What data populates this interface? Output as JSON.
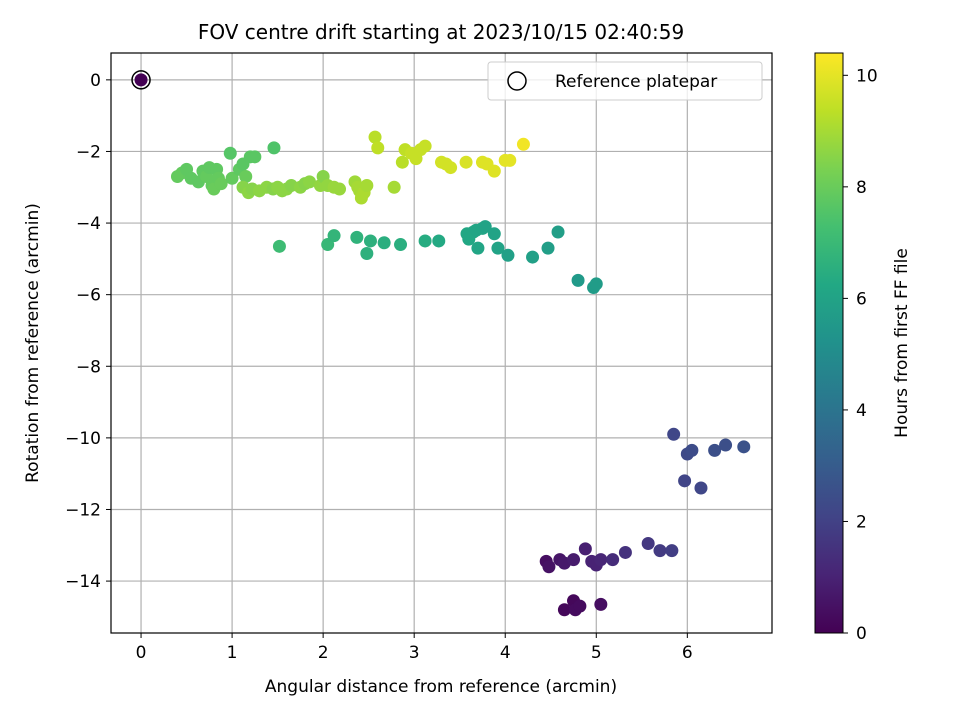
{
  "chart_data": {
    "type": "scatter",
    "title": "FOV centre drift starting at 2023/10/15 02:40:59",
    "xlabel": "Angular distance from reference (arcmin)",
    "ylabel": "Rotation from reference (arcmin)",
    "xlim": [
      -0.33,
      6.93
    ],
    "ylim": [
      -15.45,
      0.75
    ],
    "xticks": [
      "0",
      "1",
      "2",
      "3",
      "4",
      "5",
      "6"
    ],
    "xtick_values": [
      0,
      1,
      2,
      3,
      4,
      5,
      6
    ],
    "yticks": [
      "0",
      "−2",
      "−4",
      "−6",
      "−8",
      "−10",
      "−12",
      "−14"
    ],
    "ytick_values": [
      0,
      -2,
      -4,
      -6,
      -8,
      -10,
      -12,
      -14
    ],
    "grid": true,
    "legend": {
      "placement": "top-right",
      "entries": [
        "Reference platepar"
      ]
    },
    "reference_point": {
      "x": 0,
      "y": 0
    },
    "colorbar": {
      "label": "Hours from first FF file",
      "colormap": "viridis",
      "range": [
        0,
        10.4
      ],
      "ticks": [
        "0",
        "2",
        "4",
        "6",
        "8",
        "10"
      ],
      "tick_values": [
        0,
        2,
        4,
        6,
        8,
        10
      ]
    },
    "points": [
      {
        "x": 0,
        "y": 0,
        "c": 0
      },
      {
        "x": 4.45,
        "y": -13.45,
        "c": 0.4
      },
      {
        "x": 4.48,
        "y": -13.6,
        "c": 0.5
      },
      {
        "x": 4.6,
        "y": -13.4,
        "c": 0.6
      },
      {
        "x": 4.65,
        "y": -13.5,
        "c": 0.7
      },
      {
        "x": 4.75,
        "y": -13.4,
        "c": 0.8
      },
      {
        "x": 4.88,
        "y": -13.1,
        "c": 0.9
      },
      {
        "x": 4.95,
        "y": -13.45,
        "c": 1.0
      },
      {
        "x": 5.0,
        "y": -13.55,
        "c": 1.0
      },
      {
        "x": 5.05,
        "y": -13.4,
        "c": 1.1
      },
      {
        "x": 5.18,
        "y": -13.4,
        "c": 1.3
      },
      {
        "x": 5.32,
        "y": -13.2,
        "c": 1.5
      },
      {
        "x": 5.57,
        "y": -12.95,
        "c": 1.7
      },
      {
        "x": 5.7,
        "y": -13.15,
        "c": 1.8
      },
      {
        "x": 5.83,
        "y": -13.15,
        "c": 1.9
      },
      {
        "x": 4.65,
        "y": -14.8,
        "c": 0.2
      },
      {
        "x": 4.75,
        "y": -14.55,
        "c": 0.2
      },
      {
        "x": 4.77,
        "y": -14.8,
        "c": 0.3
      },
      {
        "x": 4.82,
        "y": -14.7,
        "c": 0.3
      },
      {
        "x": 5.05,
        "y": -14.65,
        "c": 0.4
      },
      {
        "x": 5.85,
        "y": -9.9,
        "c": 2.2
      },
      {
        "x": 5.97,
        "y": -11.2,
        "c": 2.1
      },
      {
        "x": 6.0,
        "y": -10.45,
        "c": 2.3
      },
      {
        "x": 6.05,
        "y": -10.35,
        "c": 2.4
      },
      {
        "x": 6.15,
        "y": -11.4,
        "c": 2.2
      },
      {
        "x": 6.3,
        "y": -10.35,
        "c": 2.5
      },
      {
        "x": 6.42,
        "y": -10.2,
        "c": 2.5
      },
      {
        "x": 6.62,
        "y": -10.25,
        "c": 2.6
      },
      {
        "x": 4.8,
        "y": -5.6,
        "c": 5.6
      },
      {
        "x": 4.97,
        "y": -5.8,
        "c": 5.7
      },
      {
        "x": 5.0,
        "y": -5.7,
        "c": 5.7
      },
      {
        "x": 1.52,
        "y": -4.65,
        "c": 7.1
      },
      {
        "x": 2.05,
        "y": -4.6,
        "c": 6.9
      },
      {
        "x": 2.12,
        "y": -4.35,
        "c": 6.8
      },
      {
        "x": 2.37,
        "y": -4.4,
        "c": 6.7
      },
      {
        "x": 2.48,
        "y": -4.85,
        "c": 6.6
      },
      {
        "x": 2.52,
        "y": -4.5,
        "c": 6.6
      },
      {
        "x": 2.67,
        "y": -4.55,
        "c": 6.5
      },
      {
        "x": 2.85,
        "y": -4.6,
        "c": 6.5
      },
      {
        "x": 3.12,
        "y": -4.5,
        "c": 6.4
      },
      {
        "x": 3.27,
        "y": -4.5,
        "c": 6.3
      },
      {
        "x": 3.58,
        "y": -4.3,
        "c": 6.2
      },
      {
        "x": 3.6,
        "y": -4.45,
        "c": 6.2
      },
      {
        "x": 3.65,
        "y": -4.25,
        "c": 6.2
      },
      {
        "x": 3.68,
        "y": -4.2,
        "c": 6.1
      },
      {
        "x": 3.7,
        "y": -4.7,
        "c": 6.1
      },
      {
        "x": 3.75,
        "y": -4.15,
        "c": 6.1
      },
      {
        "x": 3.78,
        "y": -4.1,
        "c": 6.0
      },
      {
        "x": 3.88,
        "y": -4.3,
        "c": 6.0
      },
      {
        "x": 3.92,
        "y": -4.7,
        "c": 6.0
      },
      {
        "x": 4.03,
        "y": -4.9,
        "c": 5.9
      },
      {
        "x": 4.3,
        "y": -4.95,
        "c": 5.9
      },
      {
        "x": 4.47,
        "y": -4.7,
        "c": 5.8
      },
      {
        "x": 4.58,
        "y": -4.25,
        "c": 5.8
      },
      {
        "x": 0.4,
        "y": -2.7,
        "c": 7.9
      },
      {
        "x": 0.45,
        "y": -2.6,
        "c": 7.9
      },
      {
        "x": 0.5,
        "y": -2.5,
        "c": 7.8
      },
      {
        "x": 0.55,
        "y": -2.75,
        "c": 7.8
      },
      {
        "x": 0.63,
        "y": -2.85,
        "c": 7.8
      },
      {
        "x": 0.68,
        "y": -2.55,
        "c": 7.8
      },
      {
        "x": 0.72,
        "y": -2.7,
        "c": 7.9
      },
      {
        "x": 0.75,
        "y": -2.45,
        "c": 7.8
      },
      {
        "x": 0.78,
        "y": -2.95,
        "c": 7.9
      },
      {
        "x": 0.8,
        "y": -3.05,
        "c": 8.0
      },
      {
        "x": 0.83,
        "y": -2.5,
        "c": 7.8
      },
      {
        "x": 0.85,
        "y": -2.75,
        "c": 7.9
      },
      {
        "x": 0.88,
        "y": -2.9,
        "c": 8.0
      },
      {
        "x": 0.98,
        "y": -2.05,
        "c": 7.6
      },
      {
        "x": 1.0,
        "y": -2.75,
        "c": 7.9
      },
      {
        "x": 1.08,
        "y": -2.5,
        "c": 7.8
      },
      {
        "x": 1.12,
        "y": -2.35,
        "c": 7.7
      },
      {
        "x": 1.15,
        "y": -2.7,
        "c": 8.0
      },
      {
        "x": 1.2,
        "y": -2.15,
        "c": 7.7
      },
      {
        "x": 1.25,
        "y": -2.15,
        "c": 7.7
      },
      {
        "x": 1.46,
        "y": -1.9,
        "c": 7.5
      },
      {
        "x": 1.12,
        "y": -3.0,
        "c": 8.5
      },
      {
        "x": 1.18,
        "y": -3.15,
        "c": 8.6
      },
      {
        "x": 1.22,
        "y": -3.05,
        "c": 8.5
      },
      {
        "x": 1.3,
        "y": -3.1,
        "c": 8.6
      },
      {
        "x": 1.38,
        "y": -3.0,
        "c": 8.6
      },
      {
        "x": 1.45,
        "y": -3.05,
        "c": 8.5
      },
      {
        "x": 1.5,
        "y": -3.0,
        "c": 8.6
      },
      {
        "x": 1.55,
        "y": -3.1,
        "c": 8.6
      },
      {
        "x": 1.6,
        "y": -3.05,
        "c": 8.6
      },
      {
        "x": 1.65,
        "y": -2.95,
        "c": 8.5
      },
      {
        "x": 1.75,
        "y": -3.0,
        "c": 8.6
      },
      {
        "x": 1.8,
        "y": -2.9,
        "c": 8.5
      },
      {
        "x": 1.85,
        "y": -2.85,
        "c": 8.6
      },
      {
        "x": 1.97,
        "y": -2.95,
        "c": 8.7
      },
      {
        "x": 2.0,
        "y": -2.7,
        "c": 8.5
      },
      {
        "x": 2.05,
        "y": -2.95,
        "c": 8.7
      },
      {
        "x": 2.12,
        "y": -3.0,
        "c": 8.8
      },
      {
        "x": 2.18,
        "y": -3.05,
        "c": 8.8
      },
      {
        "x": 2.35,
        "y": -2.85,
        "c": 8.9
      },
      {
        "x": 2.38,
        "y": -3.0,
        "c": 9.0
      },
      {
        "x": 2.4,
        "y": -3.1,
        "c": 9.0
      },
      {
        "x": 2.42,
        "y": -3.3,
        "c": 9.1
      },
      {
        "x": 2.45,
        "y": -3.15,
        "c": 9.1
      },
      {
        "x": 2.48,
        "y": -2.95,
        "c": 9.0
      },
      {
        "x": 2.57,
        "y": -1.6,
        "c": 9.3
      },
      {
        "x": 2.6,
        "y": -1.9,
        "c": 9.4
      },
      {
        "x": 2.78,
        "y": -3.0,
        "c": 9.0
      },
      {
        "x": 2.87,
        "y": -2.3,
        "c": 9.3
      },
      {
        "x": 2.9,
        "y": -1.95,
        "c": 9.4
      },
      {
        "x": 2.97,
        "y": -2.05,
        "c": 9.5
      },
      {
        "x": 3.02,
        "y": -2.2,
        "c": 9.5
      },
      {
        "x": 3.07,
        "y": -1.95,
        "c": 9.5
      },
      {
        "x": 3.12,
        "y": -1.85,
        "c": 9.5
      },
      {
        "x": 3.3,
        "y": -2.3,
        "c": 9.7
      },
      {
        "x": 3.35,
        "y": -2.35,
        "c": 9.7
      },
      {
        "x": 3.4,
        "y": -2.45,
        "c": 9.7
      },
      {
        "x": 3.57,
        "y": -2.3,
        "c": 9.8
      },
      {
        "x": 3.75,
        "y": -2.3,
        "c": 9.9
      },
      {
        "x": 3.8,
        "y": -2.35,
        "c": 9.9
      },
      {
        "x": 3.88,
        "y": -2.55,
        "c": 9.9
      },
      {
        "x": 4.0,
        "y": -2.25,
        "c": 10.0
      },
      {
        "x": 4.05,
        "y": -2.25,
        "c": 10.0
      },
      {
        "x": 4.2,
        "y": -1.8,
        "c": 10.2
      }
    ]
  }
}
